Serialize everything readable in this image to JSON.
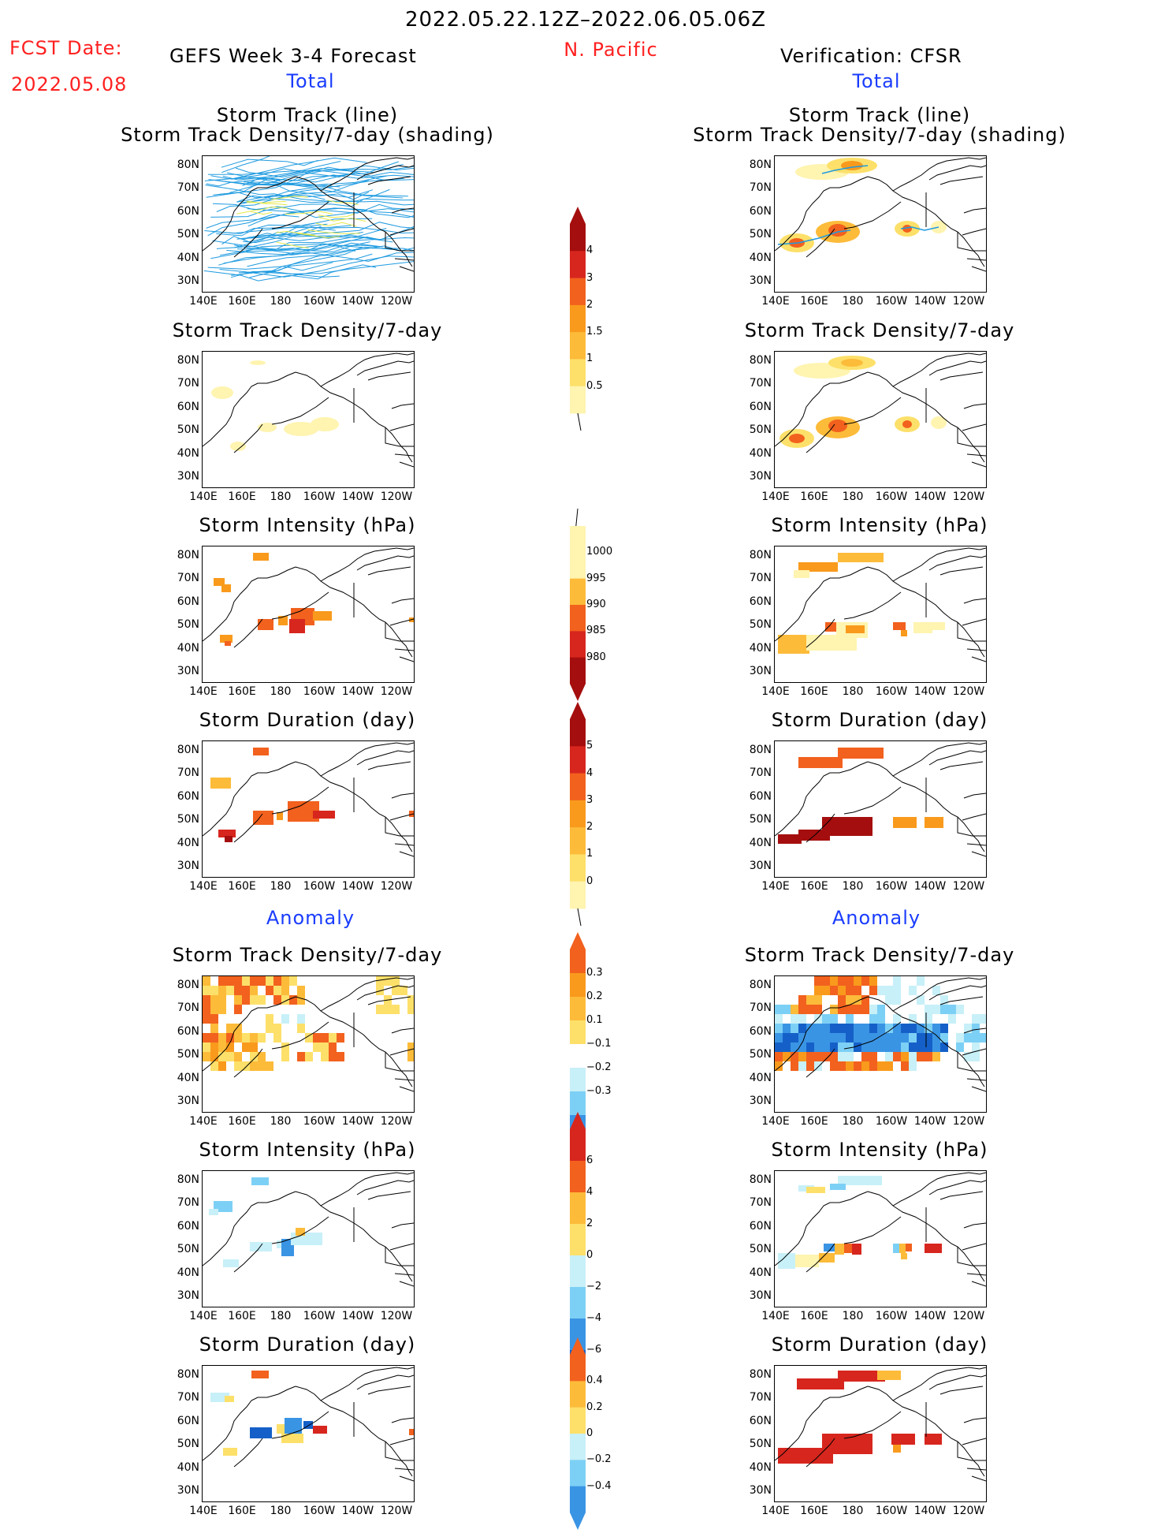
{
  "header": {
    "period": "2022.05.22.12Z–2022.06.05.06Z",
    "region": "N. Pacific",
    "fcst_label": "FCST Date:",
    "fcst_date": "2022.05.08",
    "left_title": "GEFS Week 3-4 Forecast",
    "right_title": "Verification: CFSR",
    "left_total": "Total",
    "right_total": "Total",
    "left_anomaly": "Anomaly",
    "right_anomaly": "Anomaly"
  },
  "panel_titles": {
    "track_line": "Storm Track (line)",
    "track_shading": "Storm Track Density/7-day (shading)",
    "density": "Storm Track Density/7-day",
    "intensity": "Storm Intensity (hPa)",
    "duration": "Storm Duration (day)"
  },
  "lat_labels": [
    "80N",
    "70N",
    "60N",
    "50N",
    "40N",
    "30N"
  ],
  "lon_labels": [
    "140E",
    "160E",
    "180",
    "160W",
    "140W",
    "120W"
  ],
  "colorbars": {
    "density_total": [
      "4",
      "3",
      "2",
      "1.5",
      "1",
      "0.5"
    ],
    "intensity_total": [
      "1000",
      "995",
      "990",
      "985",
      "980"
    ],
    "duration_total": [
      "5",
      "4",
      "3",
      "2",
      "1",
      "0"
    ],
    "density_anom": [
      "0.3",
      "0.2",
      "0.1",
      "−0.1",
      "−0.2",
      "−0.3"
    ],
    "intensity_anom": [
      "6",
      "4",
      "2",
      "0",
      "−2",
      "−4",
      "−6"
    ],
    "duration_anom": [
      "0.4",
      "0.2",
      "0",
      "−0.2",
      "−0.4"
    ]
  },
  "colors": {
    "warm": [
      "#fff4b0",
      "#fde06a",
      "#fdbb3a",
      "#f99a1c",
      "#f2611e",
      "#d7261e",
      "#a50e0e"
    ],
    "cool": [
      "#c8f0f8",
      "#7dd0f5",
      "#3a94e4",
      "#1560c8"
    ],
    "track": "#1f9be0"
  }
}
